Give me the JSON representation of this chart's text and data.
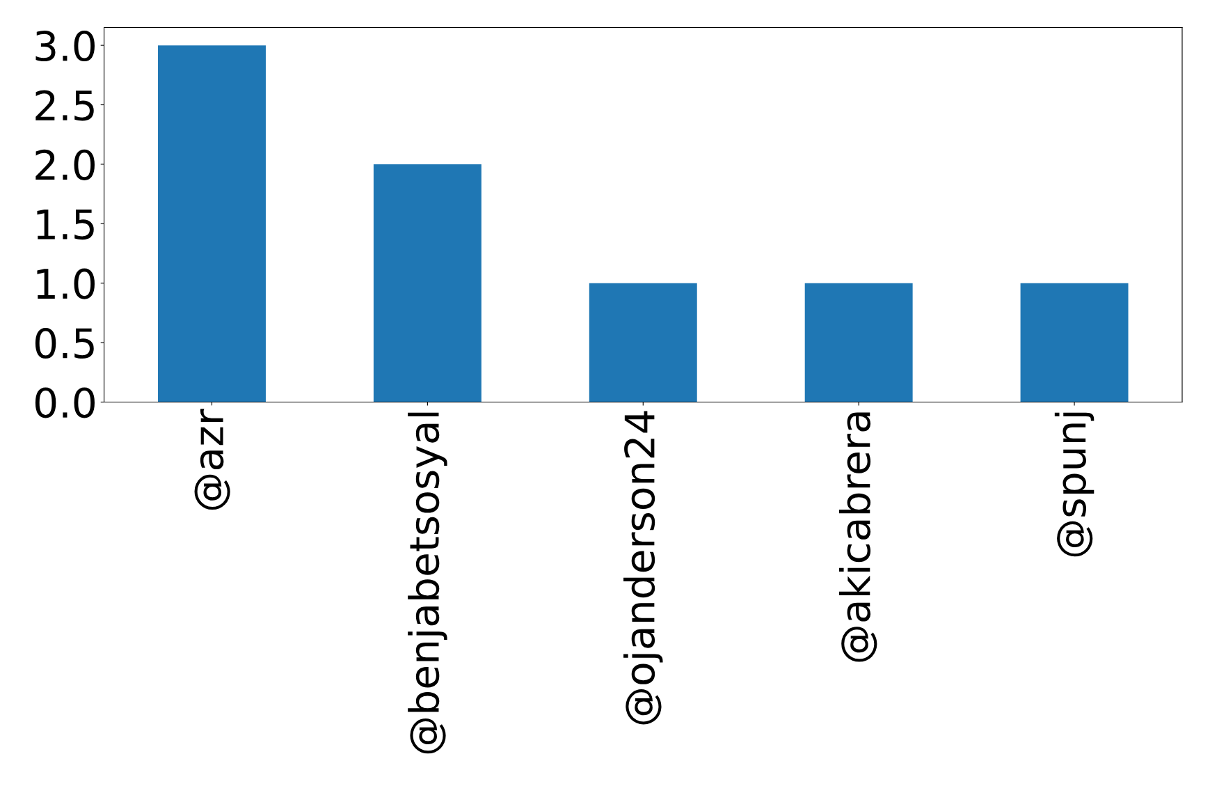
{
  "chart_data": {
    "type": "bar",
    "categories": [
      "@azr",
      "@benjabetsosyal",
      "@ojanderson24",
      "@akicabrera",
      "@spunj"
    ],
    "values": [
      3,
      2,
      1,
      1,
      1
    ],
    "color": "#1f77b4",
    "ylim": [
      0,
      3.15
    ],
    "yticks": [
      {
        "value": 0,
        "label": "0.0"
      },
      {
        "value": 0.5,
        "label": "0.5"
      },
      {
        "value": 1,
        "label": "1.0"
      },
      {
        "value": 1.5,
        "label": "1.5"
      },
      {
        "value": 2,
        "label": "2.0"
      },
      {
        "value": 2.5,
        "label": "2.5"
      },
      {
        "value": 3,
        "label": "3.0"
      }
    ],
    "grid": false,
    "legend": false
  }
}
